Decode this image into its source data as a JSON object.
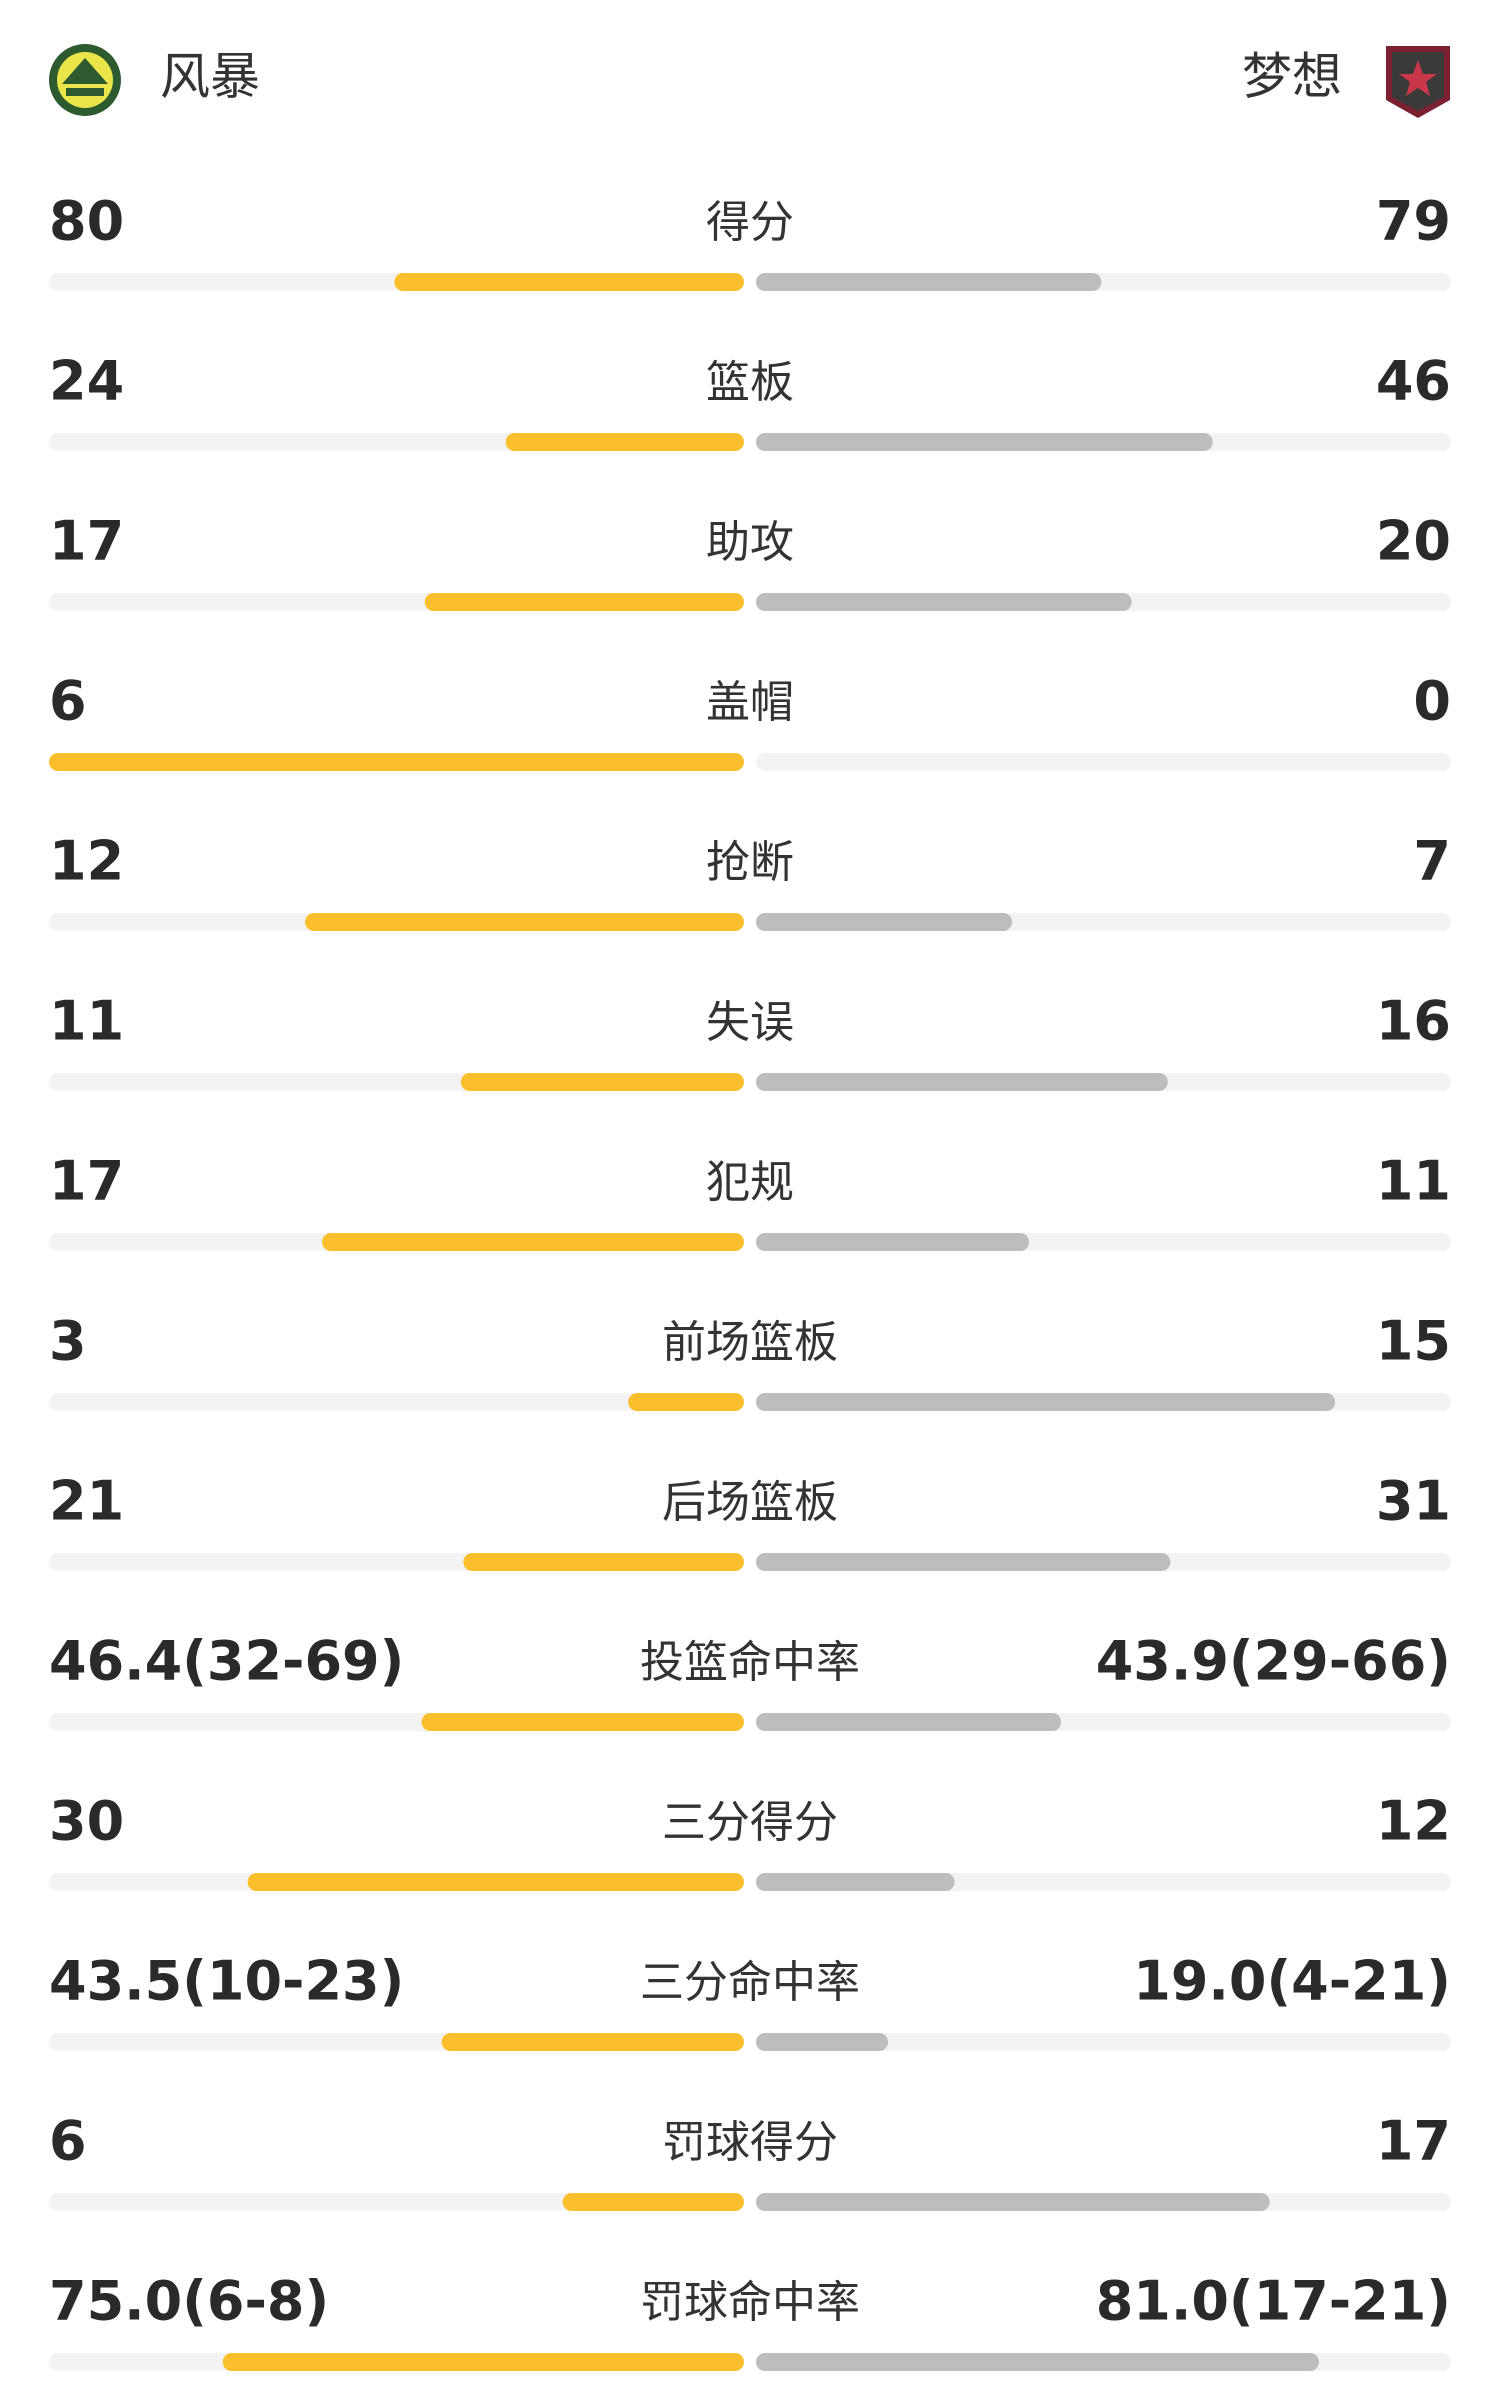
{
  "header": {
    "home_team": "风暴",
    "away_team": "梦想"
  },
  "rows": [
    {
      "label": "得分",
      "home": 80,
      "away": 79
    },
    {
      "label": "篮板",
      "home": 24,
      "away": 46
    },
    {
      "label": "助攻",
      "home": 17,
      "away": 20
    },
    {
      "label": "盖帽",
      "home": 6,
      "away": 0
    },
    {
      "label": "抢断",
      "home": 12,
      "away": 7
    },
    {
      "label": "失误",
      "home": 11,
      "away": 16
    },
    {
      "label": "犯规",
      "home": 17,
      "away": 11
    },
    {
      "label": "前场篮板",
      "home": 3,
      "away": 15
    },
    {
      "label": "后场篮板",
      "home": 21,
      "away": 31
    },
    {
      "label": "投篮命中率",
      "home": 46.4,
      "home_label": "46.4(32-69)",
      "away": 43.9,
      "away_label": "43.9(29-66)"
    },
    {
      "label": "三分得分",
      "home": 30,
      "away": 12
    },
    {
      "label": "三分命中率",
      "home": 43.5,
      "home_label": "43.5(10-23)",
      "away": 19.0,
      "away_label": "19.0(4-21)"
    },
    {
      "label": "罚球得分",
      "home": 6,
      "away": 17
    },
    {
      "label": "罚球命中率",
      "home": 75.0,
      "home_label": "75.0(6-8)",
      "away": 81.0,
      "away_label": "81.0(17-21)"
    }
  ]
}
